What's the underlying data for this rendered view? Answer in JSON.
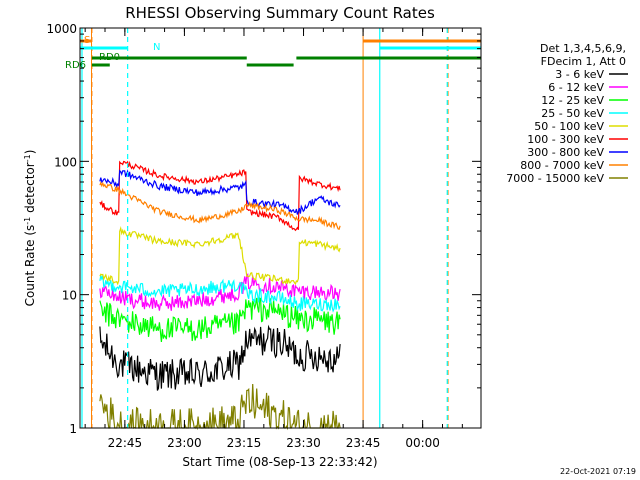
{
  "chart_data": {
    "type": "line",
    "title": "RHESSI Observing Summary Count Rates",
    "xlabel": "Start Time (08-Sep-13 22:33:42)",
    "ylabel_main": "Count Rate (s",
    "ylabel_sup1": "-1",
    "ylabel_mid": " detector",
    "ylabel_sup2": "-1",
    "ylabel_end": ")",
    "yscale": "log",
    "ylim": [
      1,
      1000
    ],
    "xlim_minutes": [
      0,
      101
    ],
    "x_ticks": [
      {
        "label": "22:45",
        "minutes": 11.3
      },
      {
        "label": "23:00",
        "minutes": 26.3
      },
      {
        "label": "23:15",
        "minutes": 41.3
      },
      {
        "label": "23:30",
        "minutes": 56.3
      },
      {
        "label": "23:45",
        "minutes": 71.3
      },
      {
        "label": "00:00",
        "minutes": 86.3
      }
    ],
    "y_ticks": [
      {
        "label": "1",
        "value": 1
      },
      {
        "label": "10",
        "value": 10
      },
      {
        "label": "100",
        "value": 100
      },
      {
        "label": "1000",
        "value": 1000
      }
    ],
    "legend_header": [
      "Det 1,3,4,5,6,9,",
      "FDecim 1, Att 0"
    ],
    "legend_position": "right",
    "series": [
      {
        "name": "3 - 6 keV",
        "color": "#000000",
        "x": [
          5,
          10,
          20,
          30,
          40,
          42,
          50,
          55,
          60,
          65.5
        ],
        "values": [
          4.5,
          3.0,
          2.5,
          2.5,
          3.0,
          4.5,
          4.5,
          3.5,
          3.5,
          3.3
        ]
      },
      {
        "name": "6 - 12 keV",
        "color": "#ff00ff",
        "x": [
          5,
          10,
          20,
          30,
          40,
          42,
          50,
          55,
          60,
          65.5
        ],
        "values": [
          11,
          9.5,
          8.5,
          9,
          10.5,
          12.5,
          11.5,
          10.5,
          10.5,
          10
        ]
      },
      {
        "name": "12 - 25 keV",
        "color": "#00ff00",
        "x": [
          5,
          10,
          20,
          30,
          40,
          42,
          50,
          55,
          60,
          65.5
        ],
        "values": [
          7.5,
          6.5,
          5.5,
          5.5,
          6.0,
          8.0,
          7.5,
          6.5,
          6.5,
          6.0
        ]
      },
      {
        "name": "25 - 50 keV",
        "color": "#00ffff",
        "x": [
          5,
          10,
          20,
          30,
          40,
          42,
          50,
          55,
          60,
          65.5
        ],
        "values": [
          12.5,
          11.5,
          10.5,
          11,
          12,
          10,
          9.5,
          8.5,
          8.5,
          8.5
        ]
      },
      {
        "name": "50 - 100 keV",
        "color": "#dddd00",
        "x": [
          5,
          9.9,
          10,
          20,
          30,
          40,
          42,
          50,
          55,
          55.1,
          60,
          65.5
        ],
        "values": [
          14,
          12.5,
          30,
          25,
          24,
          28,
          14,
          13,
          12.5,
          25,
          24,
          22
        ]
      },
      {
        "name": "100 - 300 keV",
        "color": "#ff0000",
        "x": [
          5,
          9.9,
          10,
          20,
          30,
          40,
          41.9,
          42,
          50,
          55,
          55.1,
          60,
          65.5
        ],
        "values": [
          48,
          40,
          100,
          78,
          70,
          80,
          84,
          42,
          38,
          30,
          75,
          68,
          62
        ]
      },
      {
        "name": "300 - 800 keV",
        "color": "#0000ff",
        "x": [
          5,
          9.9,
          10,
          20,
          30,
          40,
          41.9,
          42,
          50,
          55,
          60,
          65.5
        ],
        "values": [
          74,
          67,
          84,
          65,
          58,
          64,
          67,
          50,
          47,
          42,
          53,
          46
        ]
      },
      {
        "name": "800 - 7000 keV",
        "color": "#ff8000",
        "x": [
          5,
          10,
          20,
          30,
          40,
          42,
          50,
          55,
          60,
          65.5
        ],
        "values": [
          69,
          60,
          42,
          36,
          42,
          47,
          43,
          37,
          36,
          32
        ]
      },
      {
        "name": "7000 - 15000 keV",
        "color": "#808000",
        "x": [
          5,
          10,
          20,
          30,
          40,
          42,
          50,
          55,
          60,
          65.5
        ],
        "values": [
          1.6,
          1.0,
          1.0,
          1.0,
          1.1,
          1.6,
          1.2,
          1.0,
          1.0,
          1.0
        ]
      }
    ],
    "flags": [
      {
        "label": "S",
        "color": "#ff8000"
      },
      {
        "label": "N",
        "color": "#00ffff"
      },
      {
        "label": "RD0",
        "color": "#008000"
      },
      {
        "label": "RD6",
        "color": "#008000"
      }
    ],
    "orange_vlines_minutes": [
      3,
      2.9,
      71.3,
      92.7
    ],
    "cyan_vlines_minutes": [
      0.5,
      12.0,
      75.5,
      92.5
    ],
    "footer_stamp": "22-Oct-2021 07:19"
  }
}
